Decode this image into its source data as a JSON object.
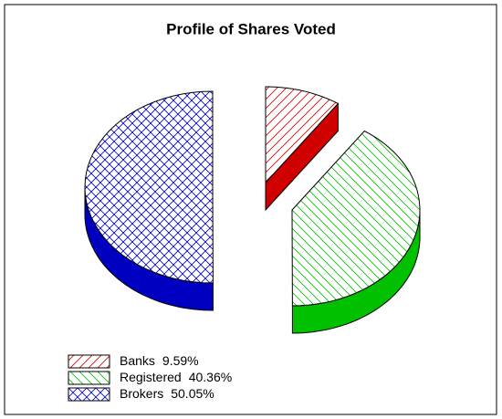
{
  "chart_data": {
    "type": "pie3d",
    "title": "Profile of Shares Voted",
    "categories": [
      "Banks",
      "Registered",
      "Brokers"
    ],
    "values": [
      9.59,
      40.36,
      50.05
    ],
    "value_labels": [
      "9.59%",
      "40.36%",
      "50.05%"
    ],
    "colors": [
      "#d00000",
      "#00c000",
      "#0000c0"
    ],
    "legend": "bottom-left"
  }
}
